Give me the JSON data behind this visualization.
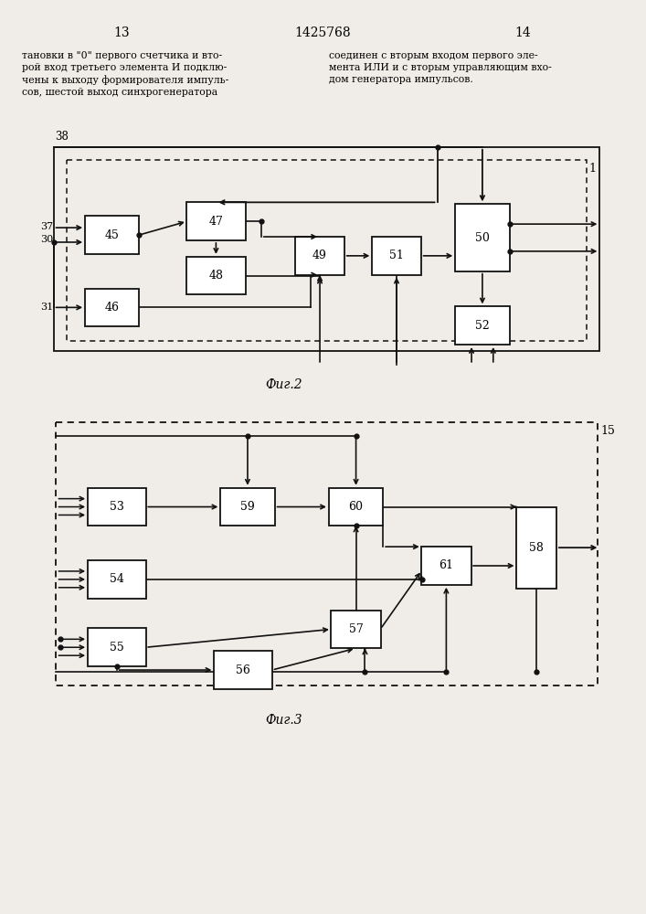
{
  "title_text": "1425768",
  "page_left": "13",
  "page_right": "14",
  "text_left": "тановки в \"0\" первого счетчика и вто-\nрой вход третьего элемента И подклю-\nчены к выходу формирователя импуль-\nсов, шестой выход синхрогенератора",
  "text_right": "соединен с вторым входом первого эле-\nмента ИЛИ и с вторым управляющим вхо-\nдом генератора импульсов.",
  "fig2_label": "Фиг.2",
  "fig3_label": "Фиг.3",
  "bg_color": "#f0ede8"
}
